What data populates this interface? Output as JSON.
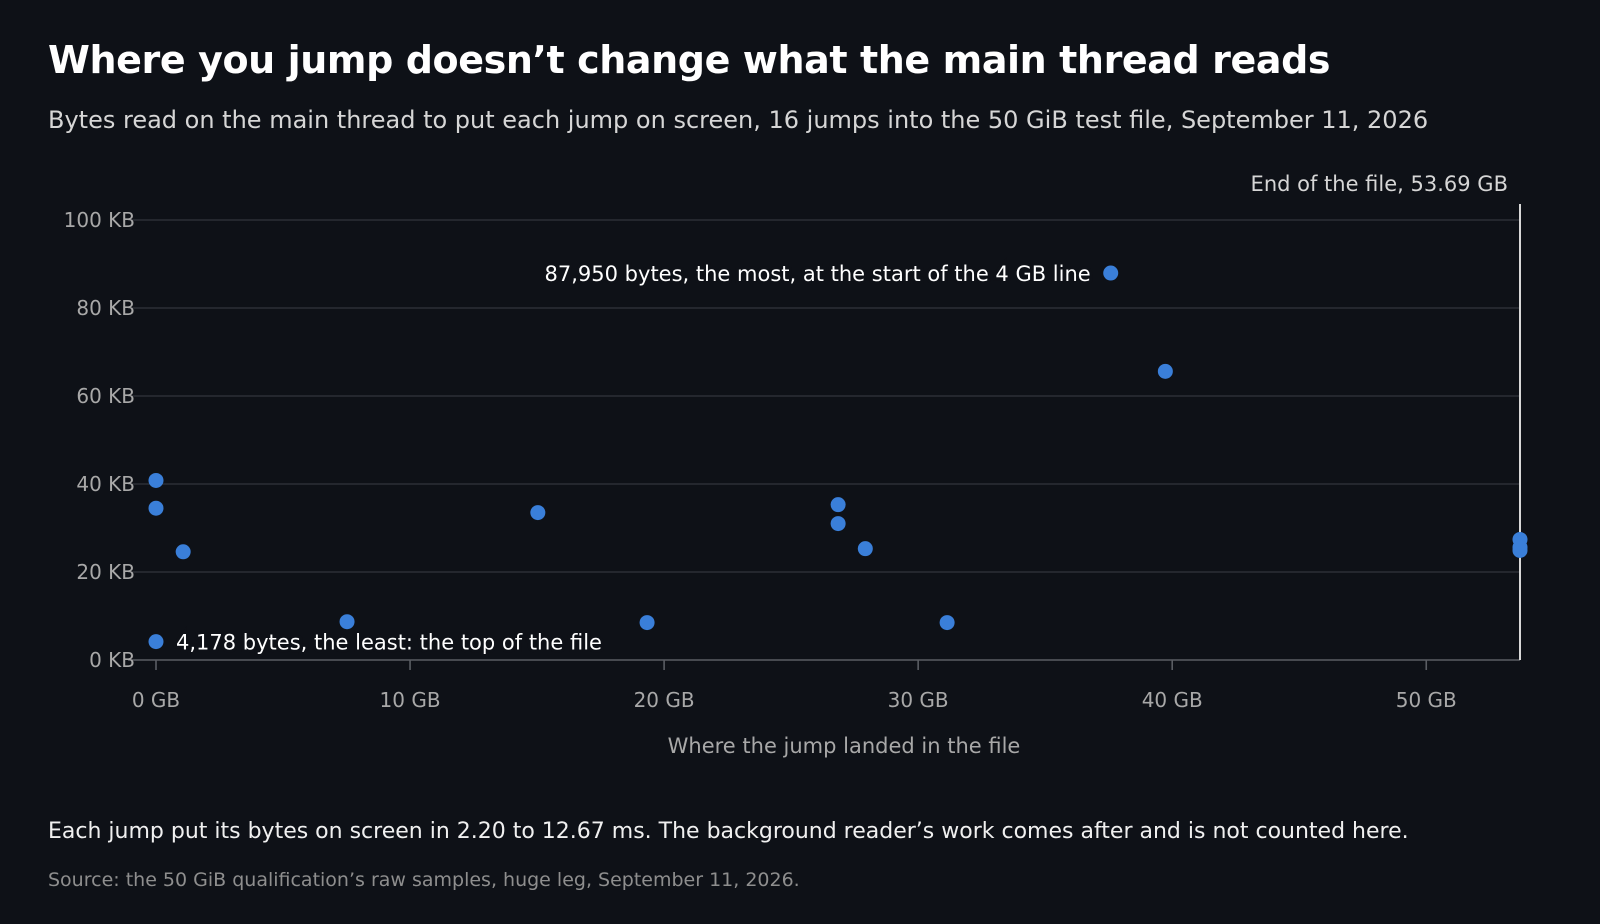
{
  "title": "Where you jump doesn’t change what the main thread reads",
  "subtitle": "Bytes read on the main thread to put each jump on screen, 16 jumps into the 50 GiB test file, September 11, 2026",
  "note": "Each jump put its bytes on screen in 2.20 to 12.67 ms. The background reader’s work comes after and is not counted here.",
  "source": "Source: the 50 GiB qualification’s raw samples, huge leg, September 11, 2026.",
  "colors": {
    "background": "#0e1117",
    "point": "#3a7fd9",
    "grid": "#3a3d44",
    "axis_text": "#a8a8a8",
    "marker_line": "#d8d8d8"
  },
  "chart_data": {
    "type": "scatter",
    "xlabel": "Where the jump landed in the file",
    "ylabel": "",
    "xlim": [
      0,
      53.69
    ],
    "ylim": [
      0,
      100
    ],
    "x_ticks": [
      0,
      10,
      20,
      30,
      40,
      50
    ],
    "x_tick_labels": [
      "0 GB",
      "10 GB",
      "20 GB",
      "30 GB",
      "40 GB",
      "50 GB"
    ],
    "y_ticks": [
      0,
      20,
      40,
      60,
      80,
      100
    ],
    "y_tick_labels": [
      "0 KB",
      "20 KB",
      "40 KB",
      "60 KB",
      "80 KB",
      "100 KB"
    ],
    "grid": "horizontal",
    "legend": "none",
    "points": [
      {
        "x": 0.0,
        "y": 4.178
      },
      {
        "x": 0.0,
        "y": 34.5
      },
      {
        "x": 0.0,
        "y": 40.8
      },
      {
        "x": 1.07,
        "y": 24.6
      },
      {
        "x": 7.52,
        "y": 8.7
      },
      {
        "x": 15.03,
        "y": 33.5
      },
      {
        "x": 19.33,
        "y": 8.5
      },
      {
        "x": 26.85,
        "y": 35.3
      },
      {
        "x": 26.85,
        "y": 31.0
      },
      {
        "x": 27.92,
        "y": 25.3
      },
      {
        "x": 31.14,
        "y": 8.5
      },
      {
        "x": 37.58,
        "y": 87.95
      },
      {
        "x": 39.73,
        "y": 65.6
      },
      {
        "x": 53.69,
        "y": 27.4
      },
      {
        "x": 53.69,
        "y": 25.6
      },
      {
        "x": 53.69,
        "y": 24.9
      }
    ],
    "annotations": [
      {
        "text": "87,950 bytes, the most, at the start of the 4 GB line",
        "x": 37.58,
        "y": 87.95,
        "side": "left"
      },
      {
        "text": "4,178 bytes, the least: the top of the file",
        "x": 0.0,
        "y": 4.178,
        "side": "right"
      }
    ],
    "reference_line": {
      "x": 53.69,
      "label": "End of the file, 53.69 GB"
    }
  }
}
